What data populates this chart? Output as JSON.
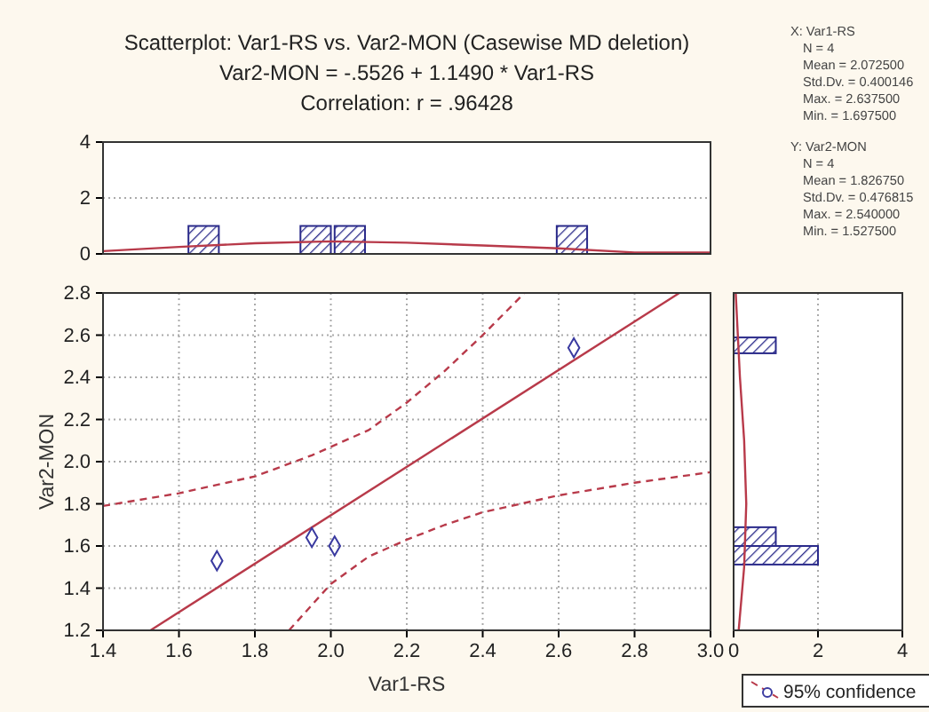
{
  "chart_data": [
    {
      "type": "other",
      "title": "Scatterplot: Var1-RS vs. Var2-MON (Casewise MD deletion)",
      "subtitle": "Var2-MON = -.5526 + 1.1490 * Var1-RS",
      "annotations": [
        "Correlation: r = .96428"
      ]
    },
    {
      "type": "scatter",
      "xlabel": "Var1-RS",
      "ylabel": "Var2-MON",
      "xlim": [
        1.4,
        3.0
      ],
      "ylim": [
        1.2,
        2.8
      ],
      "xticks": [
        {
          "value": 1.4,
          "label": "1.4"
        },
        {
          "value": 1.6,
          "label": "1.6"
        },
        {
          "value": 1.8,
          "label": "1.8"
        },
        {
          "value": 2.0,
          "label": "2.0"
        },
        {
          "value": 2.2,
          "label": "2.2"
        },
        {
          "value": 2.4,
          "label": "2.4"
        },
        {
          "value": 2.6,
          "label": "2.6"
        },
        {
          "value": 2.8,
          "label": "2.8"
        },
        {
          "value": 3.0,
          "label": "3.0"
        }
      ],
      "yticks": [
        {
          "value": 1.2,
          "label": "1.2"
        },
        {
          "value": 1.4,
          "label": "1.4"
        },
        {
          "value": 1.6,
          "label": "1.6"
        },
        {
          "value": 1.8,
          "label": "1.8"
        },
        {
          "value": 2.0,
          "label": "2.0"
        },
        {
          "value": 2.2,
          "label": "2.2"
        },
        {
          "value": 2.4,
          "label": "2.4"
        },
        {
          "value": 2.6,
          "label": "2.6"
        },
        {
          "value": 2.8,
          "label": "2.8"
        }
      ],
      "grid": true,
      "legend": "bottom right",
      "series": [
        {
          "type": "scatter",
          "marker": "diamond",
          "color": "#3a3aa0",
          "x": [
            1.7,
            1.95,
            2.01,
            2.64
          ],
          "values": [
            1.53,
            1.64,
            1.6,
            2.54
          ]
        },
        {
          "type": "line",
          "line_style": "solid",
          "color": "#b83a4a",
          "x": [
            1.525,
            2.918
          ],
          "values": [
            1.2,
            2.8
          ]
        },
        {
          "type": "line",
          "name": "95% confidence",
          "line_style": "dashed",
          "color": "#b83a4a",
          "x": [
            1.4,
            1.6,
            1.8,
            1.95,
            2.1,
            2.2,
            2.3,
            2.4,
            2.51
          ],
          "values": [
            1.79,
            1.85,
            1.93,
            2.03,
            2.15,
            2.28,
            2.43,
            2.6,
            2.8
          ]
        },
        {
          "type": "line",
          "line_style": "dashed",
          "color": "#b83a4a",
          "x": [
            1.89,
            2.0,
            2.1,
            2.2,
            2.3,
            2.4,
            2.6,
            2.8,
            3.0
          ],
          "values": [
            1.2,
            1.42,
            1.55,
            1.63,
            1.7,
            1.76,
            1.84,
            1.9,
            1.95
          ]
        }
      ]
    },
    {
      "type": "histogram",
      "xlim": [
        1.4,
        3.0
      ],
      "ylim": [
        0,
        4
      ],
      "yticks": [
        0,
        2,
        4
      ],
      "tick_labels": "y",
      "grid": "y",
      "series": [
        {
          "type": "histogram",
          "color": "#2a2a8a",
          "bins": [
            1.625,
            1.705,
            1.92,
            2.0,
            2.01,
            2.09,
            2.595,
            2.675
          ],
          "values": [
            1,
            0,
            1,
            0,
            1,
            0,
            1
          ]
        },
        {
          "type": "line",
          "line_style": "solid",
          "color": "#b83a4a",
          "x": [
            1.4,
            1.6,
            1.8,
            2.0,
            2.2,
            2.4,
            2.6,
            2.8,
            3.0
          ],
          "values": [
            0.1,
            0.25,
            0.38,
            0.45,
            0.4,
            0.3,
            0.2,
            0.05,
            0.05
          ]
        }
      ]
    },
    {
      "type": "histogram",
      "orientation": "horizontal",
      "xlim": [
        0,
        4
      ],
      "xticks": [
        0,
        2,
        4
      ],
      "ylim": [
        1.2,
        2.8
      ],
      "tick_labels": "x",
      "grid": "x",
      "series": [
        {
          "type": "histogram",
          "color": "#2a2a8a",
          "bins": [
            1.512,
            1.6,
            1.689,
            2.514,
            2.589
          ],
          "values": [
            2,
            1,
            0,
            1
          ]
        },
        {
          "type": "line",
          "line_style": "solid",
          "color": "#b83a4a",
          "x": [
            1.2,
            1.5,
            1.8,
            2.1,
            2.4,
            2.8
          ],
          "values": [
            0.12,
            0.25,
            0.3,
            0.25,
            0.15,
            0.05
          ]
        }
      ]
    },
    {
      "type": "other",
      "annotations": [
        "X: Var1-RS",
        "N = 4",
        "Mean = 2.072500",
        "Std.Dv. = 0.400146",
        "Max. = 2.637500",
        "Min. = 1.697500",
        "Y: Var2-MON",
        "N = 4",
        "Mean = 1.826750",
        "Std.Dv. = 0.476815",
        "Max. = 2.540000",
        "Min. = 1.527500"
      ]
    }
  ]
}
